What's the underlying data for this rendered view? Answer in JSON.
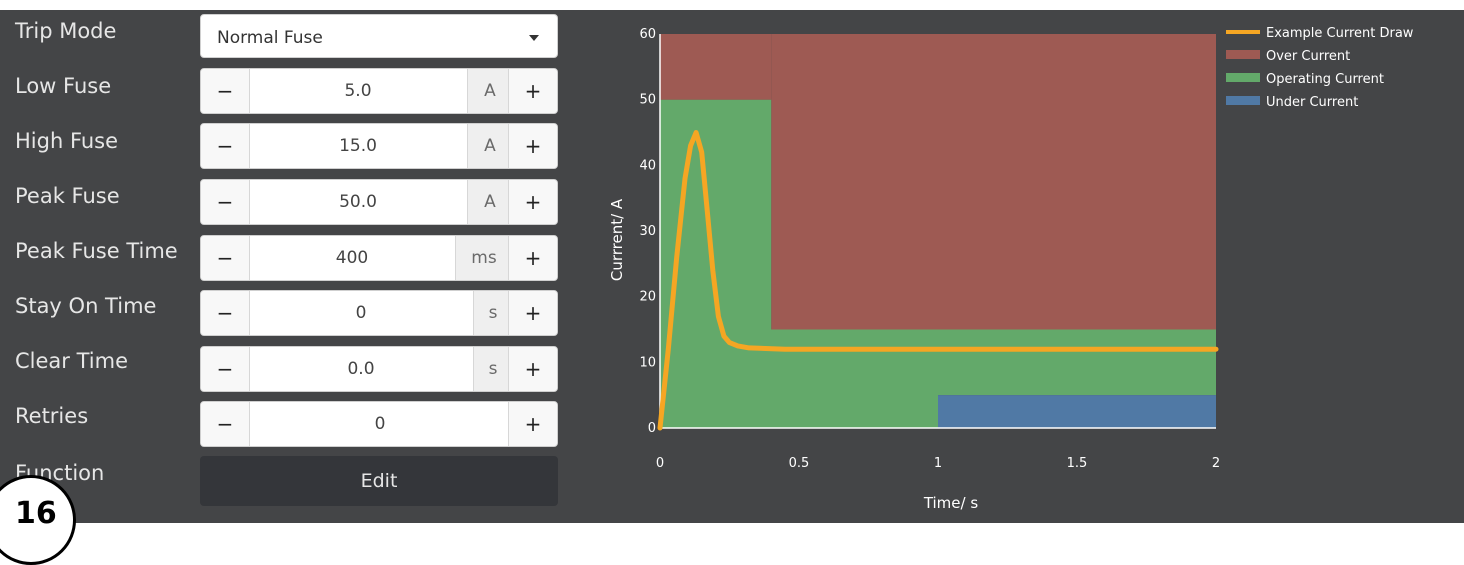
{
  "rows": [
    {
      "label": "Trip Mode"
    },
    {
      "label": "Low Fuse"
    },
    {
      "label": "High Fuse"
    },
    {
      "label": "Peak Fuse"
    },
    {
      "label": "Peak Fuse Time"
    },
    {
      "label": "Stay On Time"
    },
    {
      "label": "Clear Time"
    },
    {
      "label": "Retries"
    },
    {
      "label": "Function"
    }
  ],
  "trip_mode": {
    "value": "Normal Fuse"
  },
  "steppers": [
    {
      "minus": "−",
      "value": "5.0",
      "unit": "A",
      "plus": "+"
    },
    {
      "minus": "−",
      "value": "15.0",
      "unit": "A",
      "plus": "+"
    },
    {
      "minus": "−",
      "value": "50.0",
      "unit": "A",
      "plus": "+"
    },
    {
      "minus": "−",
      "value": "400",
      "unit": "ms",
      "plus": "+"
    },
    {
      "minus": "−",
      "value": "0",
      "unit": "s",
      "plus": "+"
    },
    {
      "minus": "−",
      "value": "0.0",
      "unit": "s",
      "plus": "+"
    },
    {
      "minus": "−",
      "value": "0",
      "unit": "",
      "plus": "+"
    }
  ],
  "function": {
    "button": "Edit"
  },
  "badge": {
    "number": "16"
  },
  "chart_data": {
    "type": "area",
    "xlabel": "Time/ s",
    "ylabel": "Currrent/ A",
    "xlim": [
      0,
      2
    ],
    "ylim": [
      0,
      60
    ],
    "xticks": [
      "0",
      "0.5",
      "1",
      "1.5",
      "2"
    ],
    "yticks": [
      "0",
      "10",
      "20",
      "30",
      "40",
      "50",
      "60"
    ],
    "legend_position": "top-right",
    "series": [
      {
        "name": "Example Current Draw",
        "color": "#f5a623",
        "kind": "line",
        "x": [
          0,
          0.03,
          0.06,
          0.09,
          0.11,
          0.13,
          0.15,
          0.17,
          0.19,
          0.21,
          0.23,
          0.25,
          0.28,
          0.32,
          0.38,
          0.45,
          0.6,
          1.0,
          1.5,
          2.0
        ],
        "y": [
          0,
          12,
          26,
          38,
          43,
          45,
          42,
          33,
          24,
          17,
          14,
          13,
          12.5,
          12.2,
          12.1,
          12,
          12,
          12,
          12,
          12
        ]
      },
      {
        "name": "Over Current",
        "color": "#9e5a53",
        "kind": "region",
        "polygon": [
          [
            0.4,
            60
          ],
          [
            2,
            60
          ],
          [
            2,
            15
          ],
          [
            0.4,
            15
          ]
        ]
      },
      {
        "name": "Operating Current",
        "color": "#63a96a",
        "kind": "region",
        "polygon": [
          [
            0,
            50
          ],
          [
            0.4,
            50
          ],
          [
            0.4,
            15
          ],
          [
            2,
            15
          ],
          [
            2,
            5
          ],
          [
            1,
            5
          ],
          [
            1,
            0
          ],
          [
            0,
            0
          ]
        ]
      },
      {
        "name": "Under Current",
        "color": "#5079a5",
        "kind": "region",
        "polygon": [
          [
            1,
            5
          ],
          [
            2,
            5
          ],
          [
            2,
            0
          ],
          [
            1,
            0
          ]
        ]
      }
    ],
    "over_region_upper_left_color": "#9e5a53"
  }
}
